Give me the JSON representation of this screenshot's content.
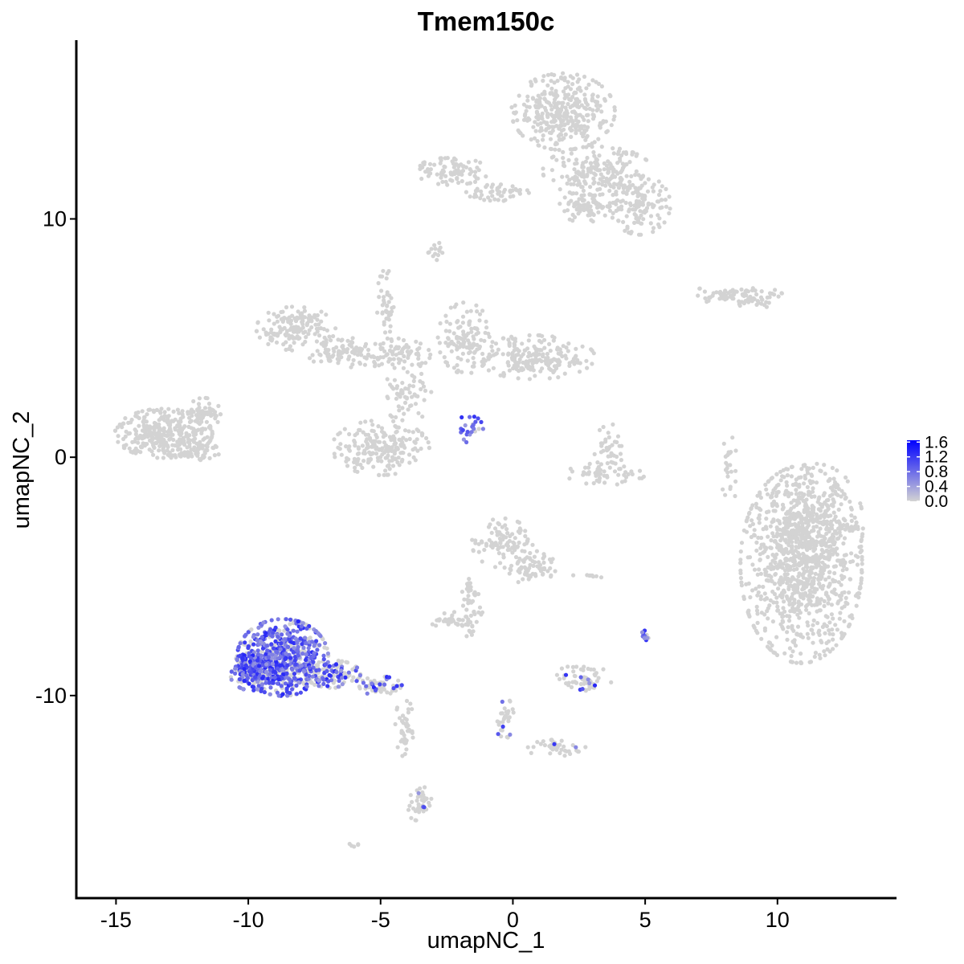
{
  "chart_data": {
    "type": "scatter",
    "title": "Tmem150c",
    "xlabel": "umapNC_1",
    "ylabel": "umapNC_2",
    "xlim": [
      -16.5,
      14.5
    ],
    "ylim": [
      -18.5,
      17.5
    ],
    "x_ticks": [
      -15,
      -10,
      -5,
      0,
      5,
      10
    ],
    "x_tick_labels": [
      "-15",
      "-10",
      "-5",
      "0",
      "5",
      "10"
    ],
    "y_ticks": [
      -10,
      0,
      10
    ],
    "y_tick_labels": [
      "-10",
      "0",
      "10"
    ],
    "grid": false,
    "legend_position": "right",
    "color_scale": {
      "low": "#d3d3d3",
      "high": "#0000ff",
      "min": 0,
      "max": 1.65,
      "breaks": [
        0,
        0.4,
        0.8,
        1.2,
        1.6
      ],
      "labels": [
        "0.0",
        "0.4",
        "0.8",
        "1.2",
        "1.6"
      ]
    },
    "clusters": [
      {
        "cx": 10.9,
        "cy": -4.5,
        "rx": 2.0,
        "ry": 3.6,
        "n": 900,
        "expr_frac": 0.0
      },
      {
        "cx": 11.4,
        "cy": -2.8,
        "rx": 1.6,
        "ry": 2.2,
        "n": 300,
        "expr_frac": 0.0
      },
      {
        "cx": -13.2,
        "cy": 1.0,
        "rx": 1.6,
        "ry": 0.9,
        "n": 320,
        "expr_frac": 0.0
      },
      {
        "cx": -11.7,
        "cy": 1.8,
        "rx": 0.7,
        "ry": 0.6,
        "n": 60,
        "expr_frac": 0.0
      },
      {
        "cx": -11.8,
        "cy": 0.2,
        "rx": 0.6,
        "ry": 0.4,
        "n": 40,
        "expr_frac": 0.0
      },
      {
        "cx": 1.9,
        "cy": 14.5,
        "rx": 1.7,
        "ry": 1.4,
        "n": 340,
        "expr_frac": 0.0
      },
      {
        "cx": 3.2,
        "cy": 12.0,
        "rx": 1.8,
        "ry": 0.9,
        "n": 200,
        "expr_frac": 0.0
      },
      {
        "cx": 4.8,
        "cy": 10.6,
        "rx": 1.0,
        "ry": 1.1,
        "n": 130,
        "expr_frac": 0.0
      },
      {
        "cx": 2.9,
        "cy": 10.5,
        "rx": 1.0,
        "ry": 0.6,
        "n": 80,
        "expr_frac": 0.0
      },
      {
        "cx": -2.3,
        "cy": 12.0,
        "rx": 1.2,
        "ry": 0.5,
        "n": 90,
        "expr_frac": 0.0
      },
      {
        "cx": -0.5,
        "cy": 11.1,
        "rx": 1.1,
        "ry": 0.3,
        "n": 50,
        "expr_frac": 0.0
      },
      {
        "cx": -2.9,
        "cy": 8.6,
        "rx": 0.3,
        "ry": 0.4,
        "n": 15,
        "expr_frac": 0.0
      },
      {
        "cx": 9.0,
        "cy": 6.7,
        "rx": 1.1,
        "ry": 0.4,
        "n": 60,
        "expr_frac": 0.0
      },
      {
        "cx": 7.6,
        "cy": 6.8,
        "rx": 0.8,
        "ry": 0.3,
        "n": 30,
        "expr_frac": 0.0
      },
      {
        "cx": -8.2,
        "cy": 5.4,
        "rx": 1.3,
        "ry": 0.8,
        "n": 150,
        "expr_frac": 0.0
      },
      {
        "cx": -6.6,
        "cy": 4.4,
        "rx": 1.0,
        "ry": 0.6,
        "n": 80,
        "expr_frac": 0.0
      },
      {
        "cx": -4.5,
        "cy": 4.3,
        "rx": 1.2,
        "ry": 0.6,
        "n": 90,
        "expr_frac": 0.0
      },
      {
        "cx": -4.8,
        "cy": 6.5,
        "rx": 0.3,
        "ry": 1.2,
        "n": 40,
        "expr_frac": 0.0
      },
      {
        "cx": -1.8,
        "cy": 5.0,
        "rx": 0.9,
        "ry": 1.3,
        "n": 120,
        "expr_frac": 0.0
      },
      {
        "cx": 0.8,
        "cy": 4.2,
        "rx": 2.0,
        "ry": 0.8,
        "n": 200,
        "expr_frac": 0.0
      },
      {
        "cx": -4.0,
        "cy": 2.6,
        "rx": 0.8,
        "ry": 1.0,
        "n": 60,
        "expr_frac": 0.0
      },
      {
        "cx": -5.0,
        "cy": 0.4,
        "rx": 1.6,
        "ry": 1.0,
        "n": 200,
        "expr_frac": 0.0
      },
      {
        "cx": -1.7,
        "cy": 1.2,
        "rx": 0.5,
        "ry": 0.5,
        "n": 25,
        "expr_frac": 0.85
      },
      {
        "cx": 3.6,
        "cy": 0.4,
        "rx": 0.5,
        "ry": 0.9,
        "n": 40,
        "expr_frac": 0.0
      },
      {
        "cx": 3.5,
        "cy": -0.7,
        "rx": 1.3,
        "ry": 0.4,
        "n": 50,
        "expr_frac": 0.0
      },
      {
        "cx": 8.2,
        "cy": -0.5,
        "rx": 0.3,
        "ry": 1.2,
        "n": 25,
        "expr_frac": 0.0
      },
      {
        "cx": -0.4,
        "cy": -3.6,
        "rx": 1.0,
        "ry": 0.9,
        "n": 100,
        "expr_frac": 0.0
      },
      {
        "cx": 0.6,
        "cy": -4.6,
        "rx": 0.9,
        "ry": 0.6,
        "n": 60,
        "expr_frac": 0.0
      },
      {
        "cx": -1.6,
        "cy": -6.2,
        "rx": 0.4,
        "ry": 1.2,
        "n": 50,
        "expr_frac": 0.0
      },
      {
        "cx": -2.4,
        "cy": -6.8,
        "rx": 0.7,
        "ry": 0.3,
        "n": 30,
        "expr_frac": 0.0
      },
      {
        "cx": 2.6,
        "cy": -9.3,
        "rx": 1.0,
        "ry": 0.5,
        "n": 60,
        "expr_frac": 0.12
      },
      {
        "cx": 5.0,
        "cy": -7.5,
        "rx": 0.2,
        "ry": 0.3,
        "n": 12,
        "expr_frac": 0.7
      },
      {
        "cx": 2.8,
        "cy": -5.0,
        "rx": 0.5,
        "ry": 0.1,
        "n": 8,
        "expr_frac": 0.0
      },
      {
        "cx": -8.7,
        "cy": -8.4,
        "rx": 1.5,
        "ry": 1.4,
        "n": 700,
        "expr_frac": 0.6
      },
      {
        "cx": -9.8,
        "cy": -9.0,
        "rx": 0.8,
        "ry": 0.7,
        "n": 200,
        "expr_frac": 0.6
      },
      {
        "cx": -6.8,
        "cy": -9.1,
        "rx": 0.9,
        "ry": 0.5,
        "n": 120,
        "expr_frac": 0.45
      },
      {
        "cx": -5.0,
        "cy": -9.6,
        "rx": 0.7,
        "ry": 0.35,
        "n": 60,
        "expr_frac": 0.25
      },
      {
        "cx": -4.1,
        "cy": -11.3,
        "rx": 0.3,
        "ry": 1.1,
        "n": 40,
        "expr_frac": 0.0
      },
      {
        "cx": -3.5,
        "cy": -14.6,
        "rx": 0.4,
        "ry": 0.7,
        "n": 40,
        "expr_frac": 0.05
      },
      {
        "cx": -0.3,
        "cy": -11.0,
        "rx": 0.3,
        "ry": 0.8,
        "n": 30,
        "expr_frac": 0.05
      },
      {
        "cx": 1.6,
        "cy": -12.2,
        "rx": 1.0,
        "ry": 0.3,
        "n": 40,
        "expr_frac": 0.03
      },
      {
        "cx": -6.0,
        "cy": -16.3,
        "rx": 0.2,
        "ry": 0.1,
        "n": 5,
        "expr_frac": 0.0
      }
    ]
  }
}
